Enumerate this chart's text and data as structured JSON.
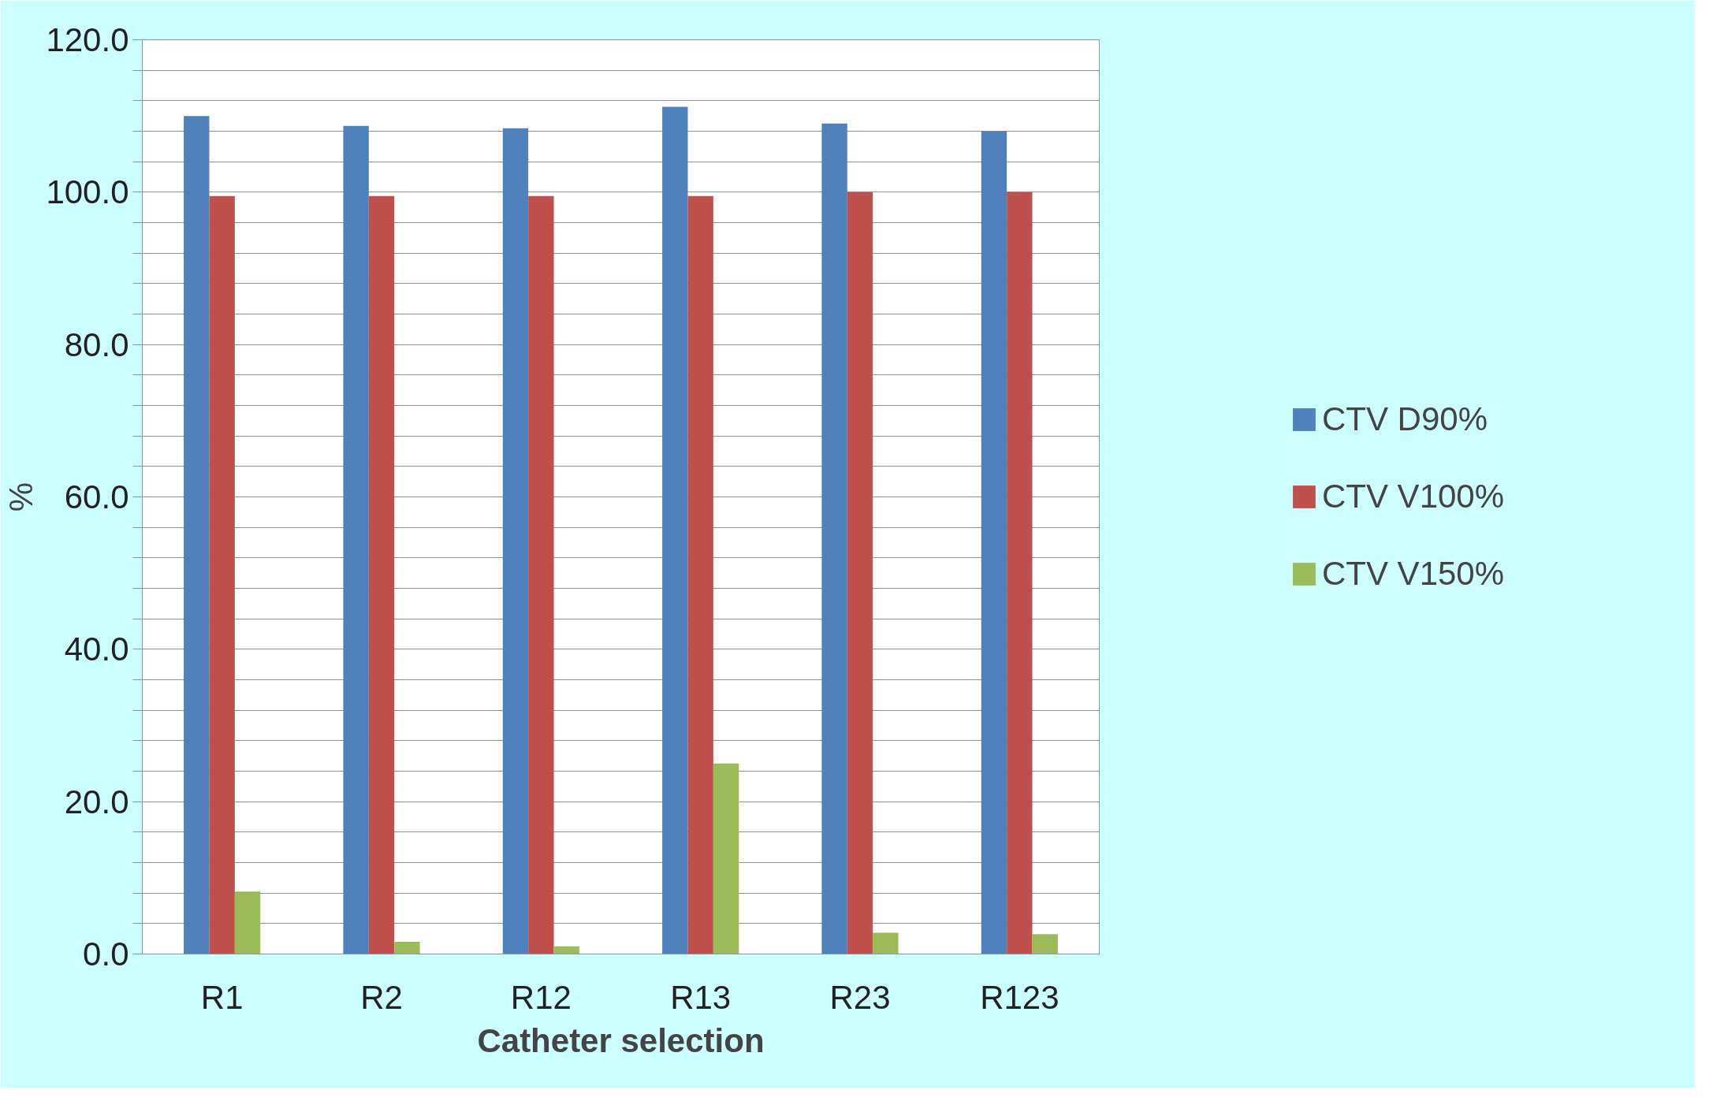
{
  "chart_data": {
    "type": "bar",
    "xlabel": "Catheter selection",
    "ylabel": "%",
    "categories": [
      "R1",
      "R2",
      "R12",
      "R13",
      "R23",
      "R123"
    ],
    "series": [
      {
        "name": "CTV D90%",
        "color": "#4f81bd",
        "values": [
          110.0,
          108.7,
          108.4,
          111.2,
          109.0,
          108.0
        ]
      },
      {
        "name": "CTV V100%",
        "color": "#c0504d",
        "values": [
          99.5,
          99.5,
          99.5,
          99.5,
          100.0,
          100.0
        ]
      },
      {
        "name": "CTV V150%",
        "color": "#9bbb59",
        "values": [
          8.2,
          1.6,
          1.0,
          25.0,
          2.8,
          2.6
        ]
      }
    ],
    "ylim": [
      0,
      120
    ],
    "yticks": [
      {
        "value": 0,
        "label": "0.0"
      },
      {
        "value": 4,
        "label": null
      },
      {
        "value": 8,
        "label": null
      },
      {
        "value": 12,
        "label": null
      },
      {
        "value": 16,
        "label": null
      },
      {
        "value": 20,
        "label": "20.0"
      },
      {
        "value": 24,
        "label": null
      },
      {
        "value": 28,
        "label": null
      },
      {
        "value": 32,
        "label": null
      },
      {
        "value": 36,
        "label": null
      },
      {
        "value": 40,
        "label": "40.0"
      },
      {
        "value": 44,
        "label": null
      },
      {
        "value": 48,
        "label": null
      },
      {
        "value": 52,
        "label": null
      },
      {
        "value": 56,
        "label": null
      },
      {
        "value": 60,
        "label": "60.0"
      },
      {
        "value": 64,
        "label": null
      },
      {
        "value": 68,
        "label": null
      },
      {
        "value": 72,
        "label": null
      },
      {
        "value": 76,
        "label": null
      },
      {
        "value": 80,
        "label": "80.0"
      },
      {
        "value": 84,
        "label": null
      },
      {
        "value": 88,
        "label": null
      },
      {
        "value": 92,
        "label": null
      },
      {
        "value": 96,
        "label": null
      },
      {
        "value": 100,
        "label": "100.0"
      },
      {
        "value": 104,
        "label": null
      },
      {
        "value": 108,
        "label": null
      },
      {
        "value": 112,
        "label": null
      },
      {
        "value": 116,
        "label": null
      },
      {
        "value": 120,
        "label": "120.0"
      }
    ],
    "grid": "y",
    "legend": "right"
  }
}
